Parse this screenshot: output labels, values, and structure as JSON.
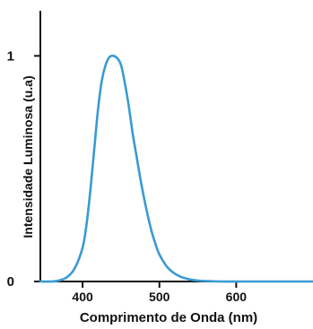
{
  "chart_data": {
    "type": "line",
    "title": "",
    "xlabel": "Comprimento de Onda (nm)",
    "ylabel": "Intensidade Luminosa (u.a)",
    "xlim": [
      345,
      700
    ],
    "ylim": [
      0,
      1.2
    ],
    "x_ticks": [
      400,
      500,
      600
    ],
    "y_ticks": [
      0,
      1
    ],
    "grid": false,
    "series_color": "#3a9ad3",
    "series": [
      {
        "x": [
          345,
          360,
          370,
          380,
          390,
          400,
          405,
          410,
          415,
          420,
          425,
          430,
          435,
          440,
          445,
          450,
          455,
          460,
          465,
          470,
          475,
          480,
          485,
          490,
          495,
          500,
          510,
          520,
          530,
          540,
          550,
          560,
          580,
          600,
          650,
          700
        ],
        "y": [
          0.0,
          0.0,
          0.005,
          0.02,
          0.06,
          0.15,
          0.25,
          0.4,
          0.58,
          0.76,
          0.89,
          0.96,
          0.995,
          1.0,
          0.99,
          0.96,
          0.88,
          0.78,
          0.66,
          0.56,
          0.46,
          0.37,
          0.29,
          0.22,
          0.165,
          0.12,
          0.065,
          0.035,
          0.018,
          0.009,
          0.004,
          0.002,
          0.0,
          0.0,
          0.0,
          0.0
        ]
      }
    ]
  }
}
